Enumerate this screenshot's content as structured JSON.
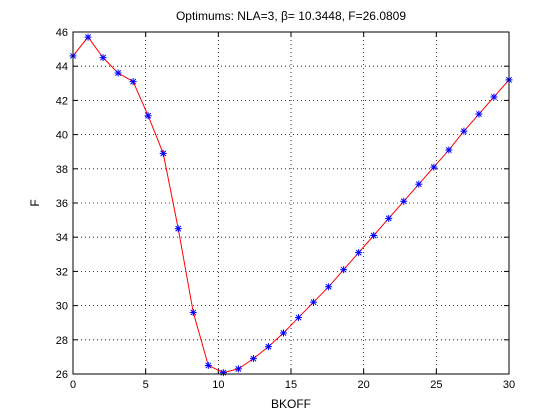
{
  "chart_data": {
    "type": "line",
    "title": "Optimums: NLA=3, β= 10.3448, F=26.0809",
    "xlabel": "BKOFF",
    "ylabel": "F",
    "xlim": [
      0,
      30
    ],
    "ylim": [
      26,
      46
    ],
    "xticks": [
      0,
      5,
      10,
      15,
      20,
      25,
      30
    ],
    "yticks": [
      26,
      28,
      30,
      32,
      34,
      36,
      38,
      40,
      42,
      44,
      46
    ],
    "grid": true,
    "series": [
      {
        "line_color": "#ff0000",
        "marker_color": "#0000ff",
        "marker": "asterisk",
        "x": [
          0,
          1.0345,
          2.069,
          3.1034,
          4.1379,
          5.1724,
          6.2069,
          7.2414,
          8.2759,
          9.3103,
          10.3448,
          11.3793,
          12.4138,
          13.4483,
          14.4828,
          15.5172,
          16.5517,
          17.5862,
          18.6207,
          19.6552,
          20.6897,
          21.7241,
          22.7586,
          23.7931,
          24.8276,
          25.8621,
          26.8966,
          27.931,
          28.9655,
          30
        ],
        "y": [
          44.6,
          45.7,
          44.5,
          43.6,
          43.1,
          41.1,
          38.9,
          34.5,
          29.6,
          26.5,
          26.08,
          26.3,
          26.9,
          27.6,
          28.4,
          29.3,
          30.2,
          31.1,
          32.1,
          33.1,
          34.1,
          35.1,
          36.1,
          37.1,
          38.1,
          39.1,
          40.2,
          41.2,
          42.2,
          43.2
        ]
      }
    ]
  }
}
